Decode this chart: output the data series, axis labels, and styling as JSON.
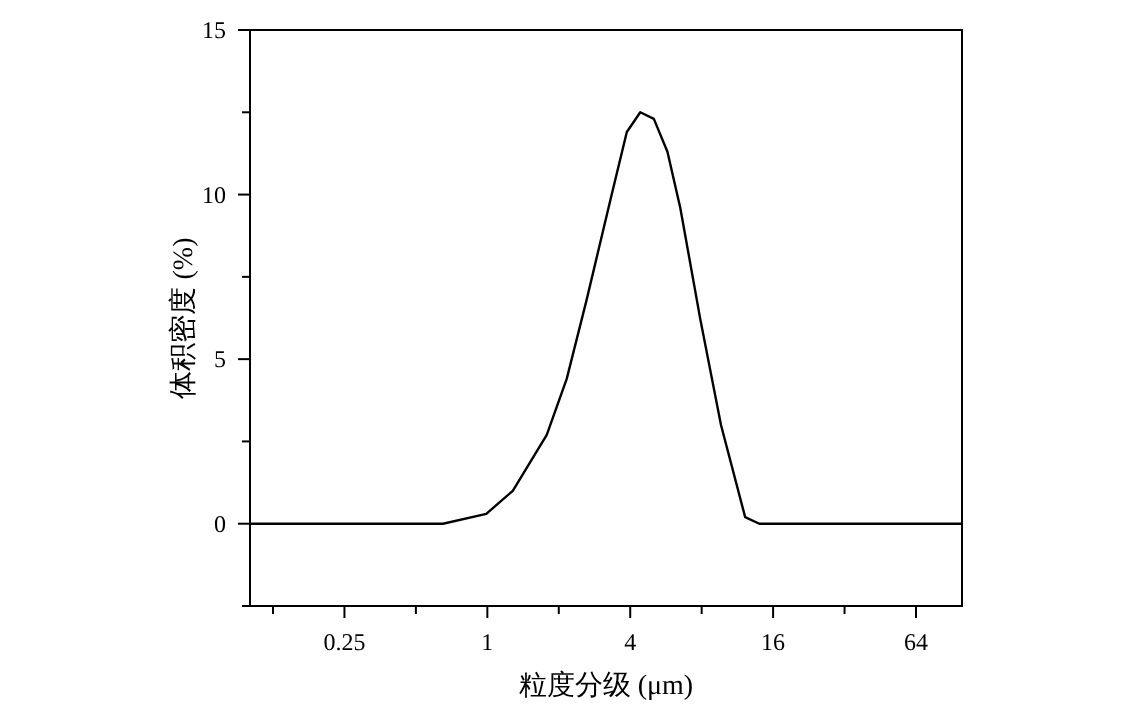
{
  "chart_data": {
    "type": "line",
    "xlabel": "粒度分级 (μm)",
    "ylabel": "体积密度 (%)",
    "log": "x",
    "xlim": [
      0.1,
      100
    ],
    "ylim": [
      -2.5,
      15
    ],
    "xticks": [
      {
        "value": 0.125,
        "label": null
      },
      0.25,
      {
        "value": 0.5,
        "label": null
      },
      1,
      {
        "value": 2,
        "label": null
      },
      4,
      {
        "value": 8,
        "label": null
      },
      16,
      {
        "value": 32,
        "label": null
      },
      64
    ],
    "yticks": [
      {
        "value": -2.5,
        "label": null
      },
      0,
      {
        "value": 2.5,
        "label": null
      },
      5,
      {
        "value": 7.5,
        "label": null
      },
      10,
      {
        "value": 12.5,
        "label": null
      },
      15
    ],
    "series": [
      {
        "color": "#000000",
        "x": [
          0.1,
          0.65,
          0.99,
          1.28,
          1.78,
          2.16,
          2.62,
          3.29,
          3.87,
          4.41,
          5.03,
          5.74,
          6.5,
          7.9,
          9.65,
          12.2,
          14.0,
          100
        ],
        "values": [
          0,
          0,
          0.3,
          1.0,
          2.7,
          4.4,
          6.8,
          9.8,
          11.9,
          12.5,
          12.3,
          11.3,
          9.6,
          6.2,
          3.0,
          0.2,
          0,
          0
        ]
      }
    ]
  }
}
